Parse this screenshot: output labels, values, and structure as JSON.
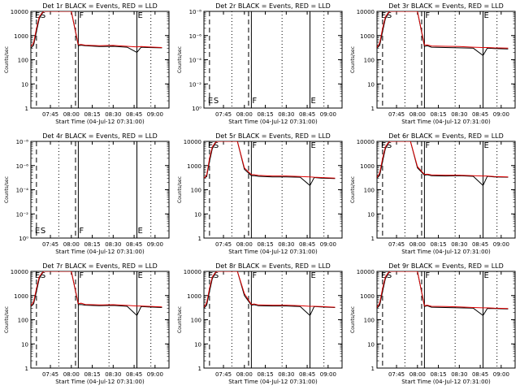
{
  "figure": {
    "x_axis_label": "Start Time (04-Jul-12 07:31:00)",
    "y_axis_label": "Counts/sec",
    "time_tick_labels": [
      "07:45",
      "08:00",
      "08:15",
      "08:30",
      "08:45",
      "09:00"
    ],
    "count_tick_labels": [
      "1",
      "10",
      "100",
      "1000",
      "10000"
    ],
    "empty_tick_labels": [
      "10⁰",
      "10⁻²",
      "10⁻⁴",
      "10⁻⁶",
      "10⁻⁸"
    ],
    "colors": {
      "events": "#000000",
      "lld": "#dd0000",
      "axes": "#000000",
      "background": "#ffffff"
    }
  },
  "chart_data": [
    {
      "type": "line",
      "title": "Det 1r BLACK = Events, RED = LLD",
      "xlabel": "Start Time (04-Jul-12 07:31:00)",
      "ylabel": "Counts/sec",
      "yscale": "log",
      "ylim": [
        1,
        10000
      ],
      "marker_labels": [
        "E",
        "S",
        "F",
        "E"
      ],
      "series": [
        {
          "x": [
            "07:31",
            "07:33",
            "07:35",
            "07:37",
            "07:40",
            "07:42",
            "07:46",
            "07:55",
            "08:00",
            "08:05",
            "08:07",
            "08:10",
            "08:20",
            "08:30",
            "08:40",
            "08:47",
            "08:50",
            "08:55",
            "09:05"
          ],
          "values": [
            300,
            400,
            1500,
            5000,
            12000,
            12000,
            12000,
            12000,
            12000,
            380,
            400,
            380,
            350,
            360,
            330,
            200,
            330,
            320,
            310
          ]
        },
        {
          "x": [
            "07:31",
            "07:33",
            "07:35",
            "07:37",
            "07:40",
            "07:42",
            "07:46",
            "07:55",
            "08:00",
            "08:05",
            "08:07",
            "08:10",
            "08:20",
            "08:30",
            "08:40",
            "08:47",
            "08:50",
            "08:55",
            "09:05"
          ],
          "values": [
            350,
            500,
            2000,
            6000,
            12000,
            12000,
            12000,
            12000,
            12000,
            420,
            430,
            400,
            380,
            390,
            360,
            340,
            350,
            340,
            320
          ]
        }
      ]
    },
    {
      "type": "line",
      "title": "Det 2r BLACK = Events, RED = LLD",
      "xlabel": "Start Time (04-Jul-12 07:31:00)",
      "ylabel": "Counts/sec",
      "yscale": "log",
      "ylim": [
        1,
        1e-08
      ],
      "marker_labels": [
        "E",
        "S",
        "F",
        "E"
      ],
      "series": []
    },
    {
      "type": "line",
      "title": "Det 3r BLACK = Events, RED = LLD",
      "xlabel": "Start Time (04-Jul-12 07:31:00)",
      "ylabel": "Counts/sec",
      "yscale": "log",
      "ylim": [
        1,
        10000
      ],
      "marker_labels": [
        "E",
        "S",
        "F",
        "E"
      ],
      "series": [
        {
          "x": [
            "07:31",
            "07:33",
            "07:35",
            "07:37",
            "07:40",
            "07:42",
            "07:46",
            "07:55",
            "08:00",
            "08:05",
            "08:07",
            "08:10",
            "08:20",
            "08:30",
            "08:40",
            "08:47",
            "08:50",
            "08:55",
            "09:05"
          ],
          "values": [
            300,
            400,
            1500,
            5000,
            12000,
            12000,
            12000,
            12000,
            12000,
            350,
            380,
            330,
            320,
            310,
            300,
            150,
            300,
            290,
            280
          ]
        },
        {
          "x": [
            "07:31",
            "07:33",
            "07:35",
            "07:37",
            "07:40",
            "07:42",
            "07:46",
            "07:55",
            "08:00",
            "08:05",
            "08:07",
            "08:10",
            "08:20",
            "08:30",
            "08:40",
            "08:47",
            "08:50",
            "08:55",
            "09:05"
          ],
          "values": [
            320,
            500,
            2000,
            6000,
            12000,
            12000,
            12000,
            12000,
            12000,
            400,
            410,
            370,
            360,
            350,
            330,
            320,
            320,
            310,
            300
          ]
        }
      ]
    },
    {
      "type": "line",
      "title": "Det 4r BLACK = Events, RED = LLD",
      "xlabel": "Start Time (04-Jul-12 07:31:00)",
      "ylabel": "Counts/sec",
      "yscale": "log",
      "ylim": [
        1,
        1e-08
      ],
      "marker_labels": [
        "E",
        "S",
        "F",
        "E"
      ],
      "series": []
    },
    {
      "type": "line",
      "title": "Det 5r BLACK = Events, RED = LLD",
      "xlabel": "Start Time (04-Jul-12 07:31:00)",
      "ylabel": "Counts/sec",
      "yscale": "log",
      "ylim": [
        1,
        10000
      ],
      "marker_labels": [
        "E",
        "S",
        "F",
        "E"
      ],
      "series": [
        {
          "x": [
            "07:31",
            "07:33",
            "07:35",
            "07:37",
            "07:40",
            "07:42",
            "07:46",
            "07:55",
            "08:00",
            "08:05",
            "08:07",
            "08:10",
            "08:20",
            "08:30",
            "08:40",
            "08:47",
            "08:50",
            "08:55",
            "09:05"
          ],
          "values": [
            300,
            350,
            1500,
            5000,
            12000,
            12000,
            12000,
            12000,
            700,
            380,
            380,
            360,
            340,
            340,
            330,
            150,
            320,
            300,
            290
          ]
        },
        {
          "x": [
            "07:31",
            "07:33",
            "07:35",
            "07:37",
            "07:40",
            "07:42",
            "07:46",
            "07:55",
            "08:00",
            "08:05",
            "08:07",
            "08:10",
            "08:20",
            "08:30",
            "08:40",
            "08:47",
            "08:50",
            "08:55",
            "09:05"
          ],
          "values": [
            300,
            400,
            2000,
            6000,
            12000,
            12000,
            12000,
            12000,
            800,
            420,
            420,
            390,
            370,
            370,
            350,
            340,
            330,
            320,
            300
          ]
        }
      ]
    },
    {
      "type": "line",
      "title": "Det 6r BLACK = Events, RED = LLD",
      "xlabel": "Start Time (04-Jul-12 07:31:00)",
      "ylabel": "Counts/sec",
      "yscale": "log",
      "ylim": [
        1,
        10000
      ],
      "marker_labels": [
        "E",
        "S",
        "F",
        "E"
      ],
      "series": [
        {
          "x": [
            "07:31",
            "07:33",
            "07:35",
            "07:37",
            "07:40",
            "07:42",
            "07:46",
            "07:55",
            "08:00",
            "08:05",
            "08:07",
            "08:10",
            "08:20",
            "08:30",
            "08:40",
            "08:47",
            "08:50",
            "08:55",
            "09:05"
          ],
          "values": [
            300,
            400,
            1500,
            5000,
            12000,
            12000,
            12000,
            12000,
            800,
            400,
            420,
            380,
            370,
            380,
            360,
            150,
            360,
            340,
            330
          ]
        },
        {
          "x": [
            "07:31",
            "07:33",
            "07:35",
            "07:37",
            "07:40",
            "07:42",
            "07:46",
            "07:55",
            "08:00",
            "08:05",
            "08:07",
            "08:10",
            "08:20",
            "08:30",
            "08:40",
            "08:47",
            "08:50",
            "08:55",
            "09:05"
          ],
          "values": [
            320,
            500,
            2000,
            6000,
            12000,
            12000,
            12000,
            12000,
            900,
            430,
            440,
            410,
            400,
            400,
            380,
            370,
            370,
            350,
            340
          ]
        }
      ]
    },
    {
      "type": "line",
      "title": "Det 7r BLACK = Events, RED = LLD",
      "xlabel": "Start Time (04-Jul-12 07:31:00)",
      "ylabel": "Counts/sec",
      "yscale": "log",
      "ylim": [
        1,
        10000
      ],
      "marker_labels": [
        "E",
        "S",
        "F",
        "E"
      ],
      "series": [
        {
          "x": [
            "07:31",
            "07:33",
            "07:35",
            "07:37",
            "07:40",
            "07:42",
            "07:46",
            "07:55",
            "08:00",
            "08:05",
            "08:07",
            "08:10",
            "08:20",
            "08:30",
            "08:40",
            "08:47",
            "08:50",
            "08:55",
            "09:05"
          ],
          "values": [
            350,
            450,
            1500,
            5000,
            12000,
            12000,
            12000,
            12000,
            12000,
            420,
            430,
            400,
            380,
            390,
            360,
            150,
            350,
            340,
            320
          ]
        },
        {
          "x": [
            "07:31",
            "07:33",
            "07:35",
            "07:37",
            "07:40",
            "07:42",
            "07:46",
            "07:55",
            "08:00",
            "08:05",
            "08:07",
            "08:10",
            "08:20",
            "08:30",
            "08:40",
            "08:47",
            "08:50",
            "08:55",
            "09:05"
          ],
          "values": [
            380,
            550,
            2000,
            6000,
            12000,
            12000,
            12000,
            12000,
            12000,
            460,
            480,
            430,
            410,
            420,
            390,
            370,
            370,
            360,
            340
          ]
        }
      ]
    },
    {
      "type": "line",
      "title": "Det 8r BLACK = Events, RED = LLD",
      "xlabel": "Start Time (04-Jul-12 07:31:00)",
      "ylabel": "Counts/sec",
      "yscale": "log",
      "ylim": [
        1,
        10000
      ],
      "marker_labels": [
        "E",
        "S",
        "F",
        "E"
      ],
      "series": [
        {
          "x": [
            "07:31",
            "07:33",
            "07:35",
            "07:37",
            "07:40",
            "07:42",
            "07:46",
            "07:55",
            "08:00",
            "08:05",
            "08:07",
            "08:10",
            "08:20",
            "08:30",
            "08:40",
            "08:47",
            "08:50",
            "08:55",
            "09:05"
          ],
          "values": [
            300,
            400,
            1500,
            5000,
            12000,
            12000,
            12000,
            12000,
            1000,
            400,
            420,
            380,
            370,
            370,
            350,
            150,
            350,
            340,
            320
          ]
        },
        {
          "x": [
            "07:31",
            "07:33",
            "07:35",
            "07:37",
            "07:40",
            "07:42",
            "07:46",
            "07:55",
            "08:00",
            "08:05",
            "08:07",
            "08:10",
            "08:20",
            "08:30",
            "08:40",
            "08:47",
            "08:50",
            "08:55",
            "09:05"
          ],
          "values": [
            330,
            500,
            2000,
            6000,
            12000,
            12000,
            12000,
            12000,
            1200,
            430,
            450,
            410,
            400,
            400,
            380,
            360,
            360,
            350,
            330
          ]
        }
      ]
    },
    {
      "type": "line",
      "title": "Det 9r BLACK = Events, RED = LLD",
      "xlabel": "Start Time (04-Jul-12 07:31:00)",
      "ylabel": "Counts/sec",
      "yscale": "log",
      "ylim": [
        1,
        10000
      ],
      "marker_labels": [
        "E",
        "S",
        "F",
        "E"
      ],
      "series": [
        {
          "x": [
            "07:31",
            "07:33",
            "07:35",
            "07:37",
            "07:40",
            "07:42",
            "07:46",
            "07:55",
            "08:00",
            "08:05",
            "08:07",
            "08:10",
            "08:20",
            "08:30",
            "08:40",
            "08:47",
            "08:50",
            "08:55",
            "09:05"
          ],
          "values": [
            300,
            400,
            1500,
            5000,
            12000,
            12000,
            12000,
            12000,
            12000,
            350,
            380,
            330,
            320,
            310,
            300,
            150,
            290,
            290,
            280
          ]
        },
        {
          "x": [
            "07:31",
            "07:33",
            "07:35",
            "07:37",
            "07:40",
            "07:42",
            "07:46",
            "07:55",
            "08:00",
            "08:05",
            "08:07",
            "08:10",
            "08:20",
            "08:30",
            "08:40",
            "08:47",
            "08:50",
            "08:55",
            "09:05"
          ],
          "values": [
            320,
            500,
            2000,
            6000,
            12000,
            12000,
            12000,
            12000,
            12000,
            380,
            400,
            360,
            350,
            340,
            320,
            310,
            310,
            300,
            290
          ]
        }
      ]
    }
  ]
}
